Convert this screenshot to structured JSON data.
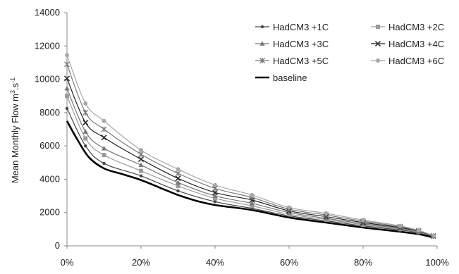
{
  "chart_data": {
    "type": "line",
    "title": "",
    "xlabel": "",
    "ylabel": "Mean Monthly Flow m",
    "ylabel_sup1": "3",
    "ylabel_mid": ".s",
    "ylabel_sup2": "-1",
    "ylim": [
      0,
      14000
    ],
    "yticks": [
      0,
      2000,
      4000,
      6000,
      8000,
      10000,
      12000,
      14000
    ],
    "ytick_labels": [
      "0",
      "2000",
      "4000",
      "6000",
      "8000",
      "10000",
      "12000",
      "14000"
    ],
    "xlim": [
      0,
      100
    ],
    "xticks": [
      0,
      20,
      40,
      60,
      80,
      100
    ],
    "xtick_labels": [
      "0%",
      "20%",
      "40%",
      "60%",
      "80%",
      "100%"
    ],
    "grid": false,
    "legend_position": "top-right",
    "x": [
      0,
      5,
      10,
      20,
      30,
      40,
      50,
      60,
      70,
      80,
      90,
      95,
      99
    ],
    "series": [
      {
        "name": "HadCM3 +1C",
        "marker": "dot",
        "color": "#444444",
        "values": [
          8250,
          6000,
          4950,
          4200,
          3300,
          2650,
          2250,
          1800,
          1500,
          1200,
          950,
          800,
          560
        ]
      },
      {
        "name": "HadCM3 +2C",
        "marker": "square",
        "color": "#9a9a9a",
        "values": [
          9000,
          6450,
          5450,
          4500,
          3600,
          2850,
          2400,
          1900,
          1580,
          1270,
          1000,
          830,
          570
        ]
      },
      {
        "name": "HadCM3 +3C",
        "marker": "triangle",
        "color": "#777777",
        "values": [
          9450,
          6850,
          5850,
          4850,
          3800,
          3000,
          2550,
          2000,
          1650,
          1330,
          1050,
          860,
          580
        ]
      },
      {
        "name": "HadCM3 +4C",
        "marker": "x",
        "color": "#222222",
        "values": [
          10050,
          7400,
          6500,
          5200,
          4050,
          3200,
          2750,
          2100,
          1750,
          1400,
          1100,
          890,
          590
        ]
      },
      {
        "name": "HadCM3 +5C",
        "marker": "star",
        "color": "#7a7a7a",
        "values": [
          10900,
          8000,
          7000,
          5500,
          4350,
          3450,
          2900,
          2200,
          1850,
          1480,
          1150,
          910,
          600
        ]
      },
      {
        "name": "HadCM3 +6C",
        "marker": "circle",
        "color": "#a8a8a8",
        "values": [
          11450,
          8550,
          7500,
          5750,
          4600,
          3650,
          3050,
          2300,
          1950,
          1550,
          1200,
          930,
          610
        ]
      }
    ],
    "baseline": {
      "name": "baseline",
      "color": "#000000",
      "x": [
        0,
        3,
        6,
        10,
        15,
        20,
        25,
        30,
        35,
        40,
        50,
        60,
        70,
        80,
        90,
        95,
        99
      ],
      "values": [
        7500,
        6300,
        5300,
        4650,
        4300,
        3950,
        3500,
        3050,
        2700,
        2450,
        2150,
        1700,
        1400,
        1100,
        850,
        700,
        500
      ]
    }
  }
}
